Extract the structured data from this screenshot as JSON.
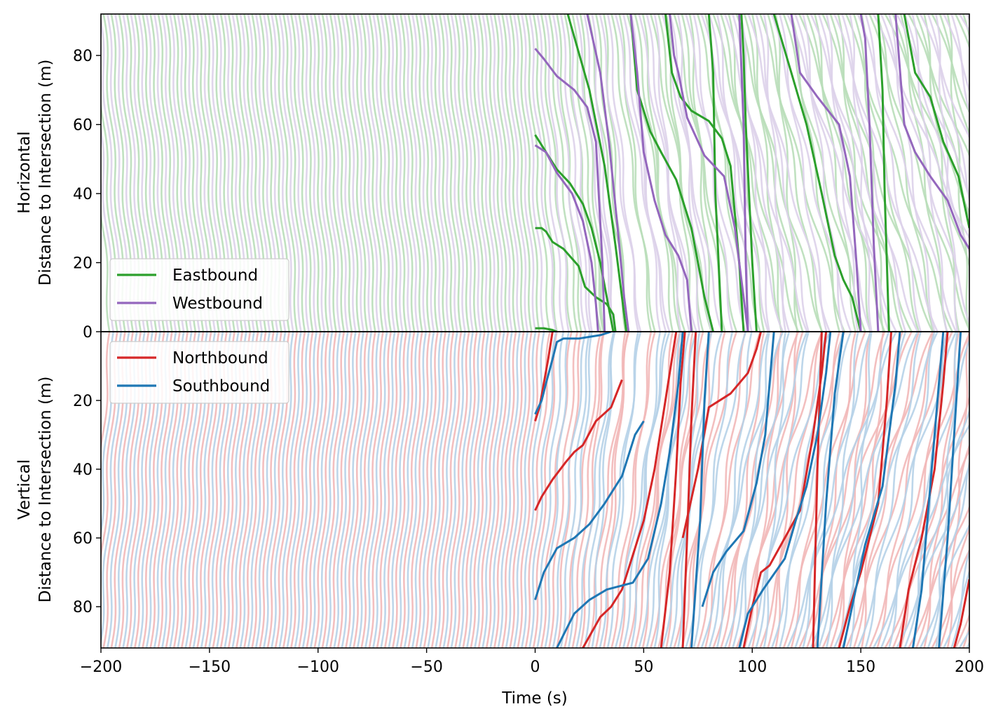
{
  "chart_data": [
    {
      "panel": "top",
      "type": "line",
      "xlabel": "Time (s)",
      "ylabel_line1": "Horizontal",
      "ylabel_line2": "Distance to Intersection (m)",
      "xlim": [
        -200,
        200
      ],
      "ylim": [
        0,
        92
      ],
      "y_inverted": false,
      "xticks": [
        -200,
        -150,
        -100,
        -50,
        0,
        50,
        100,
        150,
        200
      ],
      "xtick_labels": [
        "−200",
        "−150",
        "−100",
        "−50",
        "0",
        "50",
        "100",
        "150",
        "200"
      ],
      "yticks": [
        0,
        20,
        40,
        60,
        80
      ],
      "ytick_labels": [
        "0",
        "20",
        "40",
        "60",
        "80"
      ],
      "legend": {
        "position": "lower-left",
        "entries": [
          {
            "name": "Eastbound",
            "color": "#2ca02c"
          },
          {
            "name": "Westbound",
            "color": "#9467bd"
          }
        ]
      },
      "grid": false,
      "series": [
        {
          "name": "Eastbound",
          "color": "#2ca02c",
          "faded_color": "#b9deb9",
          "regime_before_0": "periodic faded trajectories, approx 1 vehicle every 3.6 s, speed about 8.9 m/s toward intersection",
          "regime_after_0": "queued trajectories with stop-and-go plateaus",
          "highlighted": [
            {
              "x": [
                0,
                4,
                8,
                10
              ],
              "y": [
                1,
                1,
                0.5,
                0
              ]
            },
            {
              "x": [
                0,
                3,
                5,
                8,
                13,
                20,
                23,
                28,
                33,
                36,
                37
              ],
              "y": [
                30,
                30,
                29,
                26,
                24,
                19,
                13,
                10,
                8,
                5,
                0
              ]
            },
            {
              "x": [
                0,
                3,
                6,
                10,
                16,
                22,
                26,
                30,
                33,
                36
              ],
              "y": [
                57,
                54,
                51,
                47,
                43,
                37,
                30,
                20,
                10,
                0
              ]
            },
            {
              "x": [
                15,
                25,
                32,
                37,
                40,
                42
              ],
              "y": [
                92,
                70,
                48,
                25,
                10,
                0
              ]
            },
            {
              "x": [
                44,
                47,
                53,
                58,
                65,
                68,
                72,
                75,
                78,
                80,
                82
              ],
              "y": [
                92,
                70,
                58,
                52,
                44,
                38,
                30,
                20,
                10,
                5,
                0
              ]
            },
            {
              "x": [
                60,
                63,
                67,
                72,
                80,
                86,
                90,
                94,
                96
              ],
              "y": [
                92,
                75,
                68,
                64,
                61,
                56,
                48,
                20,
                0
              ]
            },
            {
              "x": [
                80,
                82,
                83,
                86
              ],
              "y": [
                92,
                75,
                40,
                0
              ]
            },
            {
              "x": [
                95,
                96,
                97,
                100,
                102
              ],
              "y": [
                92,
                80,
                60,
                20,
                0
              ]
            },
            {
              "x": [
                110,
                118,
                125,
                132,
                138,
                142,
                146,
                150
              ],
              "y": [
                92,
                75,
                60,
                40,
                22,
                15,
                10,
                0
              ]
            },
            {
              "x": [
                158,
                160,
                161,
                163
              ],
              "y": [
                92,
                70,
                40,
                0
              ]
            },
            {
              "x": [
                170,
                175,
                182,
                188,
                195,
                200
              ],
              "y": [
                92,
                75,
                68,
                55,
                45,
                30
              ]
            }
          ]
        },
        {
          "name": "Westbound",
          "color": "#9467bd",
          "faded_color": "#ddd2ea",
          "regime_before_0": "periodic faded trajectories, offset ~1.8 s from Eastbound",
          "regime_after_0": "queued trajectories with stop-and-go plateaus",
          "highlighted": [
            {
              "x": [
                0,
                4,
                10,
                18,
                24,
                28,
                31,
                32
              ],
              "y": [
                82,
                79,
                74,
                70,
                65,
                55,
                20,
                0
              ]
            },
            {
              "x": [
                0,
                5,
                10,
                17,
                22,
                26,
                28,
                29
              ],
              "y": [
                54,
                52,
                46,
                40,
                32,
                20,
                8,
                0
              ]
            },
            {
              "x": [
                24,
                30,
                34,
                38,
                41,
                43
              ],
              "y": [
                92,
                75,
                55,
                30,
                10,
                0
              ]
            },
            {
              "x": [
                44,
                47,
                50,
                55,
                60,
                66,
                70,
                72
              ],
              "y": [
                92,
                75,
                52,
                38,
                28,
                22,
                15,
                0
              ]
            },
            {
              "x": [
                62,
                64,
                66,
                70,
                78,
                87,
                92,
                96,
                98
              ],
              "y": [
                92,
                80,
                75,
                62,
                51,
                45,
                30,
                10,
                0
              ]
            },
            {
              "x": [
                94,
                96,
                97,
                98
              ],
              "y": [
                92,
                60,
                20,
                0
              ]
            },
            {
              "x": [
                118,
                122,
                130,
                140,
                145,
                148,
                150
              ],
              "y": [
                92,
                75,
                68,
                60,
                45,
                20,
                0
              ]
            },
            {
              "x": [
                150,
                152,
                154,
                156,
                158
              ],
              "y": [
                92,
                85,
                60,
                25,
                0
              ]
            },
            {
              "x": [
                166,
                170,
                175,
                182,
                190,
                196,
                200
              ],
              "y": [
                92,
                60,
                52,
                45,
                38,
                28,
                24
              ]
            }
          ]
        }
      ]
    },
    {
      "panel": "bottom",
      "type": "line",
      "xlabel": "Time (s)",
      "ylabel_line1": "Vertical",
      "ylabel_line2": "Distance to Intersection (m)",
      "xlim": [
        -200,
        200
      ],
      "ylim": [
        0,
        92
      ],
      "y_inverted": true,
      "xticks": [
        -200,
        -150,
        -100,
        -50,
        0,
        50,
        100,
        150,
        200
      ],
      "xtick_labels": [
        "−200",
        "−150",
        "−100",
        "−50",
        "0",
        "50",
        "100",
        "150",
        "200"
      ],
      "yticks": [
        20,
        40,
        60,
        80
      ],
      "ytick_labels": [
        "20",
        "40",
        "60",
        "80"
      ],
      "legend": {
        "position": "upper-left",
        "entries": [
          {
            "name": "Northbound",
            "color": "#d62728"
          },
          {
            "name": "Southbound",
            "color": "#1f77b4"
          }
        ]
      },
      "grid": false,
      "series": [
        {
          "name": "Northbound",
          "color": "#d62728",
          "faded_color": "#f2b8b8",
          "regime_before_0": "periodic faded trajectories, approx 1 vehicle every 3.6 s, speed about 8.9 m/s toward intersection",
          "regime_after_0": "queued trajectories with stop-and-go plateaus",
          "highlighted": [
            {
              "x": [
                0,
                2,
                4,
                6,
                8
              ],
              "y": [
                26,
                22,
                15,
                8,
                0
              ]
            },
            {
              "x": [
                0,
                3,
                8,
                14,
                18,
                22,
                28,
                35,
                40
              ],
              "y": [
                52,
                48,
                43,
                38,
                35,
                33,
                26,
                22,
                14
              ]
            },
            {
              "x": [
                22,
                30,
                35,
                40,
                45,
                50,
                55,
                60,
                63,
                65
              ],
              "y": [
                92,
                83,
                80,
                75,
                65,
                55,
                40,
                20,
                8,
                0
              ]
            },
            {
              "x": [
                58,
                62,
                65,
                67,
                69
              ],
              "y": [
                92,
                70,
                40,
                15,
                0
              ]
            },
            {
              "x": [
                68,
                70,
                72,
                74
              ],
              "y": [
                92,
                60,
                25,
                0
              ]
            },
            {
              "x": [
                96,
                100,
                104,
                108,
                115,
                122,
                128,
                132,
                134
              ],
              "y": [
                92,
                80,
                70,
                68,
                60,
                52,
                30,
                12,
                0
              ]
            },
            {
              "x": [
                68,
                75,
                80,
                90,
                98,
                102,
                104
              ],
              "y": [
                60,
                40,
                22,
                18,
                12,
                5,
                0
              ]
            },
            {
              "x": [
                128,
                130,
                132
              ],
              "y": [
                92,
                40,
                0
              ]
            },
            {
              "x": [
                140,
                145,
                150,
                158,
                162,
                164
              ],
              "y": [
                92,
                80,
                70,
                50,
                20,
                0
              ]
            },
            {
              "x": [
                168,
                172,
                178,
                184,
                188,
                190
              ],
              "y": [
                92,
                75,
                60,
                40,
                15,
                0
              ]
            },
            {
              "x": [
                193,
                196,
                200
              ],
              "y": [
                92,
                85,
                72
              ]
            }
          ]
        },
        {
          "name": "Southbound",
          "color": "#1f77b4",
          "faded_color": "#b6d2e8",
          "regime_before_0": "periodic faded trajectories, offset ~1.8 s from Northbound",
          "regime_after_0": "queued trajectories with stop-and-go plateaus",
          "highlighted": [
            {
              "x": [
                0,
                3,
                5,
                8,
                10,
                13,
                20,
                30,
                35
              ],
              "y": [
                24,
                20,
                15,
                8,
                3,
                2,
                2,
                1,
                0
              ]
            },
            {
              "x": [
                0,
                4,
                10,
                18,
                25,
                32,
                40,
                46,
                50
              ],
              "y": [
                78,
                70,
                63,
                60,
                56,
                50,
                42,
                30,
                26
              ]
            },
            {
              "x": [
                10,
                18,
                25,
                33,
                45,
                52,
                58,
                62,
                66,
                68
              ],
              "y": [
                92,
                82,
                78,
                75,
                73,
                66,
                50,
                35,
                15,
                0
              ]
            },
            {
              "x": [
                72,
                76,
                78,
                80
              ],
              "y": [
                92,
                55,
                20,
                0
              ]
            },
            {
              "x": [
                94,
                98,
                105,
                115,
                120,
                125,
                130,
                134,
                136
              ],
              "y": [
                92,
                82,
                75,
                66,
                55,
                45,
                30,
                12,
                0
              ]
            },
            {
              "x": [
                77,
                82,
                88,
                96,
                102,
                106,
                110
              ],
              "y": [
                80,
                70,
                64,
                58,
                44,
                30,
                0
              ]
            },
            {
              "x": [
                130,
                134,
                138,
                142
              ],
              "y": [
                92,
                50,
                18,
                0
              ]
            },
            {
              "x": [
                142,
                146,
                152,
                160,
                166,
                168
              ],
              "y": [
                92,
                80,
                62,
                45,
                15,
                0
              ]
            },
            {
              "x": [
                174,
                178,
                182,
                186,
                188
              ],
              "y": [
                92,
                75,
                45,
                15,
                0
              ]
            },
            {
              "x": [
                186,
                190,
                194,
                196
              ],
              "y": [
                92,
                60,
                20,
                0
              ]
            }
          ]
        }
      ]
    }
  ]
}
